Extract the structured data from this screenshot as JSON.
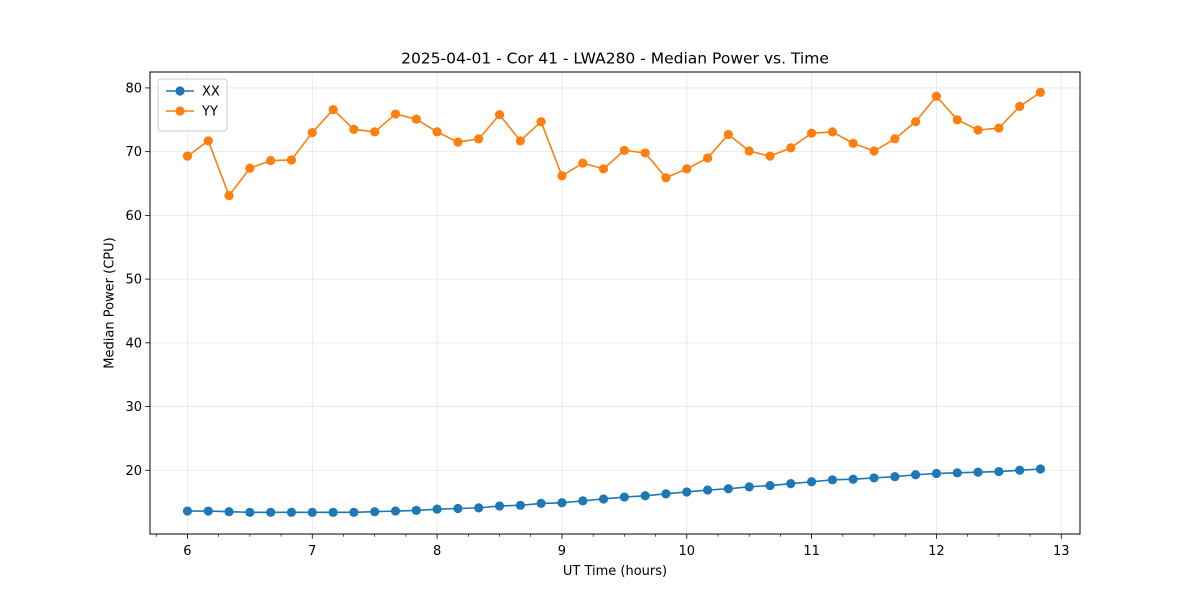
{
  "chart_data": {
    "type": "line",
    "title": "2025-04-01 - Cor 41 - LWA280 - Median Power vs. Time",
    "xlabel": "UT Time (hours)",
    "ylabel": "Median Power (CPU)",
    "xlim": [
      5.7,
      13.15
    ],
    "ylim": [
      10.0,
      82.5
    ],
    "xticks": [
      6,
      7,
      8,
      9,
      10,
      11,
      12,
      13
    ],
    "yticks": [
      20,
      30,
      40,
      50,
      60,
      70,
      80
    ],
    "grid": true,
    "legend_position": "top-left",
    "x": [
      6.0,
      6.167,
      6.333,
      6.5,
      6.667,
      6.833,
      7.0,
      7.167,
      7.333,
      7.5,
      7.667,
      7.833,
      8.0,
      8.167,
      8.333,
      8.5,
      8.667,
      8.833,
      9.0,
      9.167,
      9.333,
      9.5,
      9.667,
      9.833,
      10.0,
      10.167,
      10.333,
      10.5,
      10.667,
      10.833,
      11.0,
      11.167,
      11.333,
      11.5,
      11.667,
      11.833,
      12.0,
      12.167,
      12.333,
      12.5,
      12.667,
      12.833
    ],
    "series": [
      {
        "name": "XX",
        "color": "#1f77b4",
        "values": [
          13.6,
          13.6,
          13.5,
          13.4,
          13.4,
          13.4,
          13.4,
          13.4,
          13.4,
          13.5,
          13.6,
          13.7,
          13.9,
          14.0,
          14.1,
          14.4,
          14.5,
          14.8,
          14.9,
          15.2,
          15.5,
          15.8,
          16.0,
          16.3,
          16.6,
          16.9,
          17.1,
          17.4,
          17.6,
          17.9,
          18.2,
          18.5,
          18.6,
          18.8,
          19.0,
          19.3,
          19.5,
          19.6,
          19.7,
          19.8,
          20.0,
          20.2
        ]
      },
      {
        "name": "YY",
        "color": "#ff7f0e",
        "values": [
          69.3,
          71.7,
          63.1,
          67.4,
          68.6,
          68.7,
          73.0,
          76.6,
          73.5,
          73.1,
          75.9,
          75.1,
          73.1,
          71.5,
          72.0,
          75.8,
          71.7,
          74.7,
          66.2,
          68.2,
          67.3,
          70.2,
          69.8,
          65.9,
          67.3,
          69.0,
          72.7,
          70.1,
          69.3,
          70.6,
          72.9,
          73.1,
          71.3,
          70.1,
          72.0,
          74.7,
          78.7,
          75.0,
          73.4,
          73.7,
          77.1,
          79.3
        ]
      }
    ]
  }
}
